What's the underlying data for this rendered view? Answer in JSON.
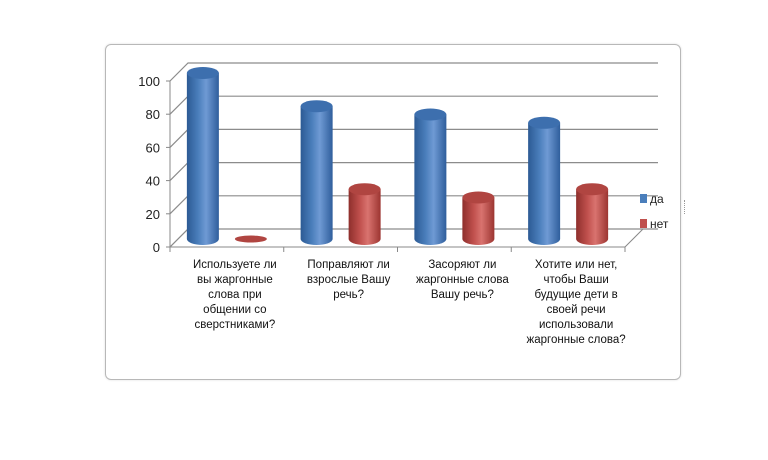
{
  "chart_data": {
    "type": "bar",
    "style": "3d-cylinder",
    "title": "",
    "xlabel": "",
    "ylabel": "",
    "ylim": [
      0,
      100
    ],
    "yticks": [
      "0",
      "20",
      "40",
      "60",
      "80",
      "100"
    ],
    "grid": true,
    "legend_position": "right",
    "categories": [
      "Используете ли вы жаргонные слова при общении со сверстниками?",
      "Поправляют ли взрослые Вашу речь?",
      "Засоряют ли жаргонные слова Вашу речь?",
      "Хотите или нет, чтобы Ваши будущие дети в своей речи использовали жаргонные слова?"
    ],
    "series": [
      {
        "name": "да",
        "color": "#4a7ebb",
        "values": [
          100,
          80,
          75,
          70
        ]
      },
      {
        "name": "нет",
        "color": "#c0504d",
        "values": [
          0,
          30,
          25,
          30
        ]
      }
    ]
  }
}
